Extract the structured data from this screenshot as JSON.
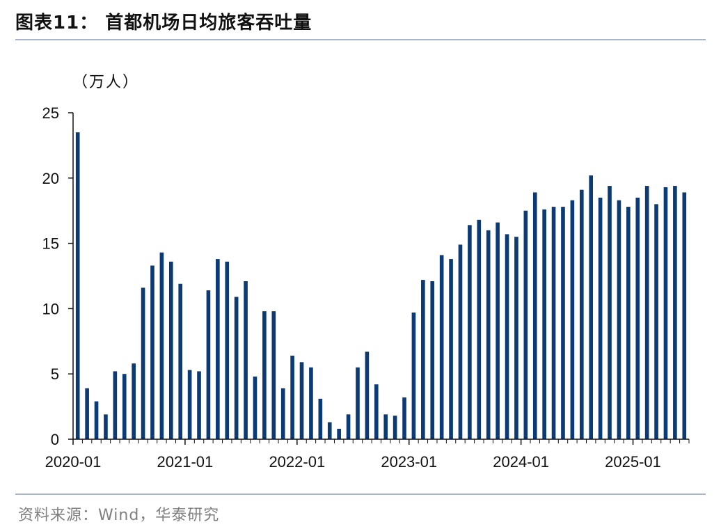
{
  "header": {
    "title": "图表11：  首都机场日均旅客吞吐量"
  },
  "footer": {
    "source": "资料来源：Wind，华泰研究"
  },
  "colors": {
    "bar": "#0b3a74",
    "axis": "#111111",
    "rule": "#a9b6c8",
    "source_text": "#7f7f7f"
  },
  "chart_data": {
    "type": "bar",
    "title": "首都机场日均旅客吞吐量",
    "unit_label": "（万人）",
    "ylim": [
      0,
      25
    ],
    "yticks": [
      0,
      5,
      10,
      15,
      20,
      25
    ],
    "xticks": [
      "2020-01",
      "2021-01",
      "2022-01",
      "2023-01",
      "2024-01",
      "2025-01"
    ],
    "grid": false,
    "categories": [
      "2020-01",
      "2020-02",
      "2020-03",
      "2020-04",
      "2020-05",
      "2020-06",
      "2020-07",
      "2020-08",
      "2020-09",
      "2020-10",
      "2020-11",
      "2020-12",
      "2021-01",
      "2021-02",
      "2021-03",
      "2021-04",
      "2021-05",
      "2021-06",
      "2021-07",
      "2021-08",
      "2021-09",
      "2021-10",
      "2021-11",
      "2021-12",
      "2022-01",
      "2022-02",
      "2022-03",
      "2022-04",
      "2022-05",
      "2022-06",
      "2022-07",
      "2022-08",
      "2022-09",
      "2022-10",
      "2022-11",
      "2022-12",
      "2023-01",
      "2023-02",
      "2023-03",
      "2023-04",
      "2023-05",
      "2023-06",
      "2023-07",
      "2023-08",
      "2023-09",
      "2023-10",
      "2023-11",
      "2023-12",
      "2024-01",
      "2024-02",
      "2024-03",
      "2024-04",
      "2024-05",
      "2024-06",
      "2024-07",
      "2024-08",
      "2024-09",
      "2024-10",
      "2024-11",
      "2024-12",
      "2025-01",
      "2025-02",
      "2025-03",
      "2025-04",
      "2025-05",
      "2025-06"
    ],
    "values": [
      23.5,
      3.9,
      2.9,
      1.9,
      5.2,
      5.0,
      5.8,
      11.6,
      13.3,
      14.3,
      13.6,
      11.9,
      5.3,
      5.2,
      11.4,
      13.8,
      13.6,
      10.9,
      12.1,
      4.8,
      9.8,
      9.8,
      3.9,
      6.4,
      5.9,
      5.5,
      3.1,
      1.3,
      0.8,
      1.9,
      5.5,
      6.7,
      4.2,
      1.9,
      1.8,
      3.2,
      9.7,
      12.2,
      12.1,
      14.1,
      13.8,
      14.9,
      16.4,
      16.8,
      16.0,
      16.6,
      15.7,
      15.5,
      17.5,
      18.9,
      17.6,
      17.8,
      17.8,
      18.3,
      19.1,
      20.2,
      18.5,
      19.4,
      18.3,
      17.8,
      18.5,
      19.4,
      18.0,
      19.3,
      19.4,
      18.9
    ]
  }
}
